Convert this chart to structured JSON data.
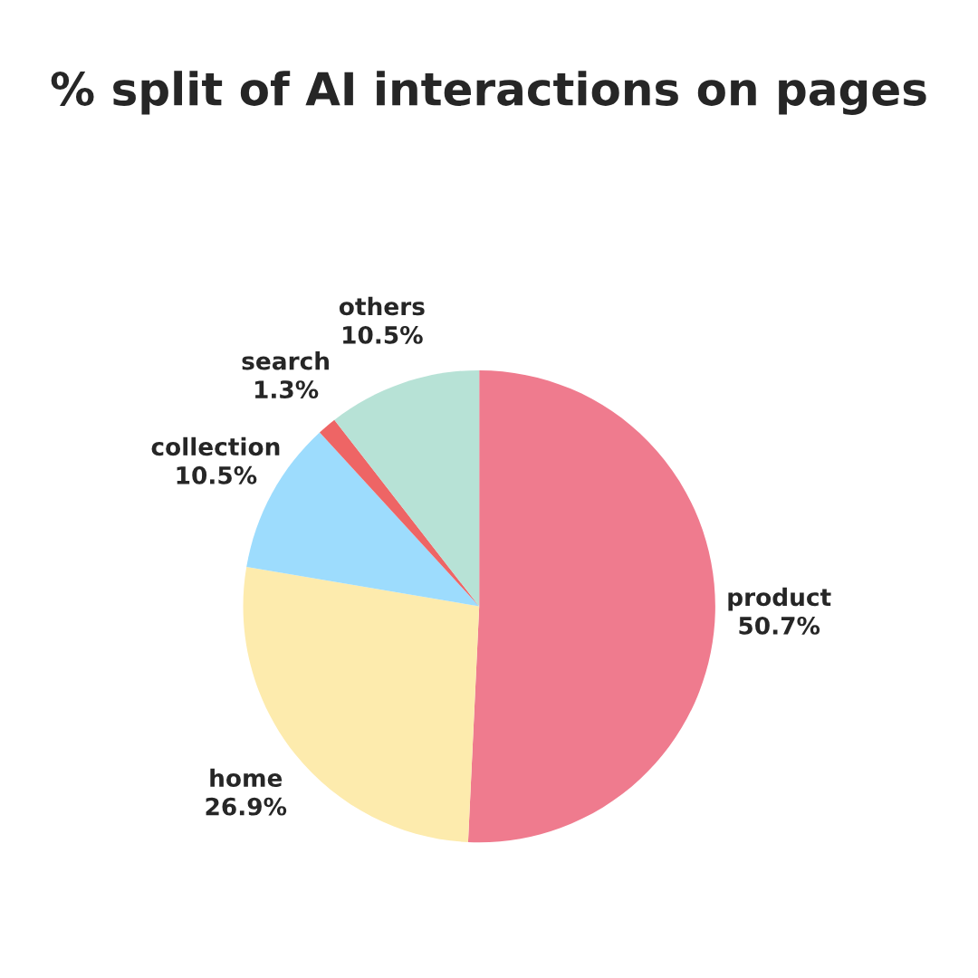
{
  "chart_data": {
    "type": "pie",
    "title": "% split of AI interactions on pages",
    "categories": [
      "product",
      "home",
      "collection",
      "search",
      "others"
    ],
    "values": [
      50.7,
      26.9,
      10.5,
      1.3,
      10.5
    ],
    "value_labels": [
      "50.7%",
      "26.9%",
      "10.5%",
      "1.3%",
      "10.5%"
    ],
    "colors": [
      "#ef7b8e",
      "#fdebad",
      "#9ddcfd",
      "#ee6565",
      "#b7e2d6"
    ]
  }
}
